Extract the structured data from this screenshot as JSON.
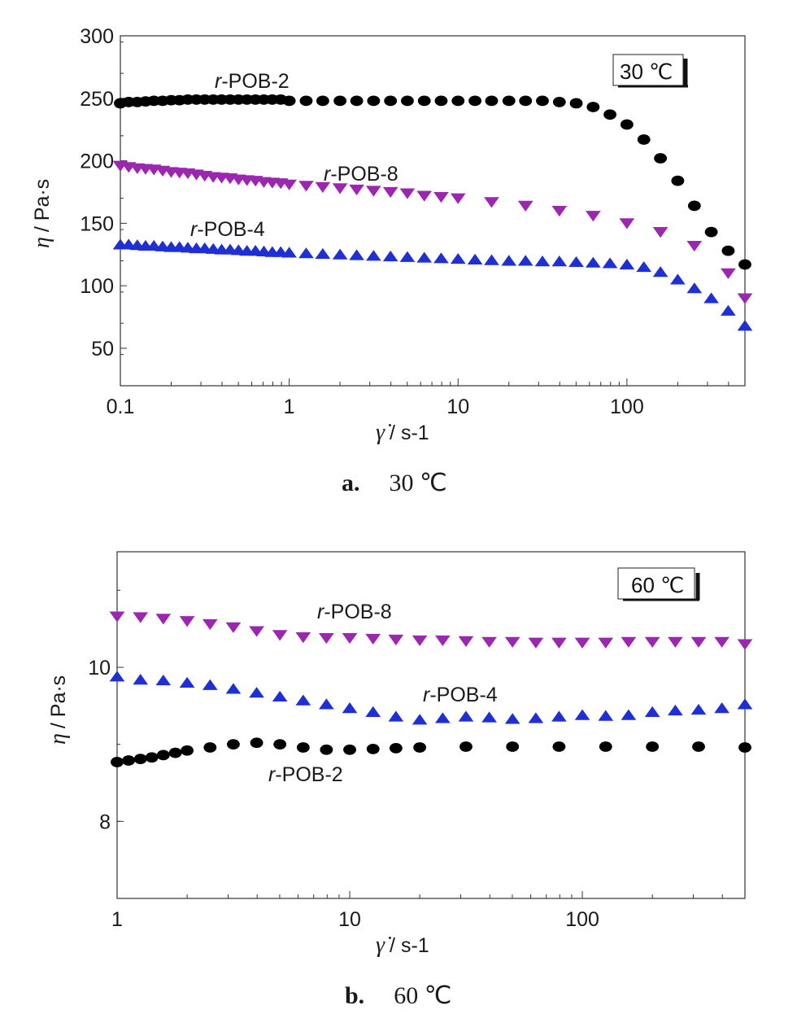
{
  "chart_data": [
    {
      "type": "scatter",
      "panel_letter": "a.",
      "panel_temperature": "30 ℃",
      "temperature_box": "30 ℃",
      "xscale": "log",
      "xlim": [
        0.1,
        500
      ],
      "ylim": [
        20,
        300
      ],
      "x_ticks": [
        "0.1",
        "1",
        "10",
        "100"
      ],
      "y_ticks": [
        "50",
        "100",
        "150",
        "200",
        "250",
        "300"
      ],
      "ylabel_symbol": "η",
      "ylabel_unit": "/ Pa·s",
      "xlabel_symbol": "γ̇",
      "xlabel_unit": "/ s-1",
      "grid": false,
      "series": [
        {
          "name": "r-POB-2",
          "label_prefix": "r",
          "label_rest": "-POB-2",
          "color": "#000000",
          "marker": "circle",
          "x": [
            0.1,
            0.112,
            0.126,
            0.141,
            0.158,
            0.178,
            0.2,
            0.224,
            0.251,
            0.282,
            0.316,
            0.355,
            0.398,
            0.447,
            0.501,
            0.562,
            0.631,
            0.708,
            0.794,
            0.891,
            1.0,
            1.26,
            1.58,
            2.0,
            2.51,
            3.16,
            3.98,
            5.01,
            6.31,
            7.94,
            10.0,
            12.6,
            15.8,
            20.0,
            25.1,
            31.6,
            39.8,
            50.1,
            63.1,
            79.4,
            100,
            126,
            158,
            200,
            251,
            316,
            398,
            500
          ],
          "y": [
            246,
            247,
            247,
            247.5,
            248,
            248,
            248.5,
            248.5,
            249,
            249,
            249,
            249,
            249,
            249,
            249,
            249,
            249,
            249,
            249,
            249,
            248,
            248,
            248,
            248,
            248,
            248,
            248,
            248,
            248,
            248,
            248,
            248,
            248,
            248,
            248,
            248,
            247,
            246,
            243,
            237,
            229,
            217,
            202,
            184,
            164,
            143,
            128,
            117
          ],
          "note": "spacing irregular near high shear"
        },
        {
          "name": "r-POB-8",
          "label_prefix": "r",
          "label_rest": "-POB-8",
          "color": "#9b27b0",
          "marker": "triangle-down",
          "x": [
            0.1,
            0.112,
            0.126,
            0.141,
            0.158,
            0.178,
            0.2,
            0.224,
            0.251,
            0.282,
            0.316,
            0.355,
            0.398,
            0.447,
            0.501,
            0.562,
            0.631,
            0.708,
            0.794,
            0.891,
            1.0,
            1.26,
            1.58,
            2.0,
            2.51,
            3.16,
            3.98,
            5.01,
            6.31,
            7.94,
            10.0,
            15.8,
            25.1,
            39.8,
            63.1,
            100,
            158,
            251,
            398,
            500
          ],
          "y": [
            196,
            195,
            194,
            193.5,
            193,
            192,
            191,
            190.5,
            190,
            189,
            188,
            187,
            186.5,
            186,
            185,
            184.5,
            184,
            183,
            182.5,
            182,
            181,
            180,
            179,
            178,
            177,
            176,
            175,
            174,
            172,
            171,
            170,
            167,
            164,
            160,
            156,
            150,
            143,
            132,
            110,
            90
          ]
        },
        {
          "name": "r-POB-4",
          "label_prefix": "r",
          "label_rest": "-POB-4",
          "color": "#1f2fd6",
          "marker": "triangle-up",
          "x": [
            0.1,
            0.112,
            0.126,
            0.141,
            0.158,
            0.178,
            0.2,
            0.224,
            0.251,
            0.282,
            0.316,
            0.355,
            0.398,
            0.447,
            0.501,
            0.562,
            0.631,
            0.708,
            0.794,
            0.891,
            1.0,
            1.26,
            1.58,
            2.0,
            2.51,
            3.16,
            3.98,
            5.01,
            6.31,
            7.94,
            10.0,
            12.6,
            15.8,
            20.0,
            25.1,
            31.6,
            39.8,
            50.1,
            63.1,
            79.4,
            100,
            126,
            158,
            200,
            251,
            316,
            398,
            500
          ],
          "y": [
            133,
            133,
            132.5,
            132,
            132,
            131.5,
            131,
            131,
            130.5,
            130,
            130,
            129.5,
            129,
            129,
            128.5,
            128,
            128,
            127.5,
            127,
            127,
            126.5,
            126,
            125.5,
            125,
            124.5,
            124,
            123.5,
            123,
            122.5,
            122,
            121.5,
            121,
            120.5,
            120,
            120,
            119.5,
            119.5,
            119,
            118.5,
            118,
            117,
            115,
            111,
            105,
            98,
            90,
            80,
            68
          ]
        }
      ]
    },
    {
      "type": "scatter",
      "panel_letter": "b.",
      "panel_temperature": "60 ℃",
      "temperature_box": "60 ℃",
      "xscale": "log",
      "xlim": [
        1,
        500
      ],
      "ylim": [
        7,
        11.5
      ],
      "x_ticks": [
        "1",
        "10",
        "100"
      ],
      "y_ticks": [
        "8",
        "10"
      ],
      "ylabel_symbol": "η",
      "ylabel_unit": "/ Pa·s",
      "xlabel_symbol": "γ̇",
      "xlabel_unit": "/ s-1",
      "grid": false,
      "series": [
        {
          "name": "r-POB-8",
          "label_prefix": "r",
          "label_rest": "-POB-8",
          "color": "#9b27b0",
          "marker": "triangle-down",
          "x": [
            1.0,
            1.26,
            1.58,
            2.0,
            2.51,
            3.16,
            3.98,
            5.01,
            6.31,
            7.94,
            10.0,
            12.6,
            15.8,
            20.0,
            25.1,
            31.6,
            39.8,
            50.1,
            63.1,
            79.4,
            100,
            126,
            158,
            200,
            251,
            316,
            398,
            500
          ],
          "y": [
            10.66,
            10.65,
            10.63,
            10.6,
            10.56,
            10.52,
            10.47,
            10.42,
            10.39,
            10.38,
            10.38,
            10.37,
            10.36,
            10.35,
            10.35,
            10.34,
            10.33,
            10.33,
            10.32,
            10.32,
            10.32,
            10.32,
            10.33,
            10.33,
            10.33,
            10.33,
            10.33,
            10.3
          ]
        },
        {
          "name": "r-POB-4",
          "label_prefix": "r",
          "label_rest": "-POB-4",
          "color": "#1f2fd6",
          "marker": "triangle-up",
          "x": [
            1.0,
            1.26,
            1.58,
            2.0,
            2.51,
            3.16,
            3.98,
            5.01,
            6.31,
            7.94,
            10.0,
            12.6,
            15.8,
            20.0,
            25.1,
            31.6,
            39.8,
            50.1,
            63.1,
            79.4,
            100,
            126,
            158,
            200,
            251,
            316,
            398,
            500
          ],
          "y": [
            9.88,
            9.84,
            9.83,
            9.8,
            9.77,
            9.72,
            9.67,
            9.62,
            9.57,
            9.52,
            9.47,
            9.42,
            9.36,
            9.32,
            9.34,
            9.36,
            9.35,
            9.33,
            9.34,
            9.36,
            9.38,
            9.37,
            9.38,
            9.42,
            9.44,
            9.45,
            9.47,
            9.52
          ]
        },
        {
          "name": "r-POB-2",
          "label_prefix": "r",
          "label_rest": "-POB-2",
          "color": "#000000",
          "marker": "circle",
          "x": [
            1.0,
            1.12,
            1.26,
            1.41,
            1.58,
            1.78,
            2.0,
            2.51,
            3.16,
            3.98,
            5.01,
            6.31,
            7.94,
            10.0,
            12.6,
            15.8,
            20.0,
            31.6,
            50.1,
            79.4,
            126,
            200,
            316,
            500
          ],
          "y": [
            8.77,
            8.79,
            8.81,
            8.83,
            8.86,
            8.89,
            8.92,
            8.96,
            9.0,
            9.02,
            9.0,
            8.96,
            8.93,
            8.93,
            8.94,
            8.95,
            8.96,
            8.97,
            8.97,
            8.97,
            8.97,
            8.97,
            8.97,
            8.96
          ]
        }
      ]
    }
  ]
}
